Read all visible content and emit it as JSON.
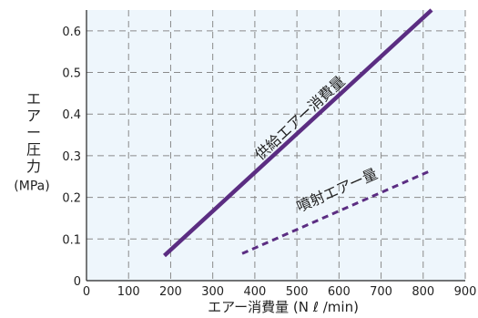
{
  "chart_data": {
    "type": "line",
    "title": "",
    "xlabel": "エアー消費量 (N ℓ /min)",
    "ylabel_lines": [
      "エ",
      "ア",
      "ー",
      "圧",
      "力",
      "(MPa)"
    ],
    "xlim": [
      0,
      900
    ],
    "ylim": [
      0,
      0.65
    ],
    "xticks": [
      0,
      100,
      200,
      300,
      400,
      500,
      600,
      700,
      800,
      900
    ],
    "yticks": [
      0,
      0.1,
      0.2,
      0.3,
      0.4,
      0.5,
      0.6
    ],
    "ytick_labels": [
      "0",
      "0.1",
      "0.2",
      "0.3",
      "0.4",
      "0.5",
      "0.6"
    ],
    "grid": true,
    "series": [
      {
        "name": "供給エアー消費量",
        "x": [
          185,
          820
        ],
        "y": [
          0.06,
          0.65
        ],
        "style": "solid",
        "color": "#5b2d82"
      },
      {
        "name": "噴射エアー量",
        "x": [
          370,
          820
        ],
        "y": [
          0.065,
          0.265
        ],
        "style": "dashed",
        "color": "#5b2d82"
      }
    ]
  },
  "colors": {
    "plot_background": "#eef6fc",
    "grid": "#8a8a8a",
    "axis": "#222222"
  }
}
